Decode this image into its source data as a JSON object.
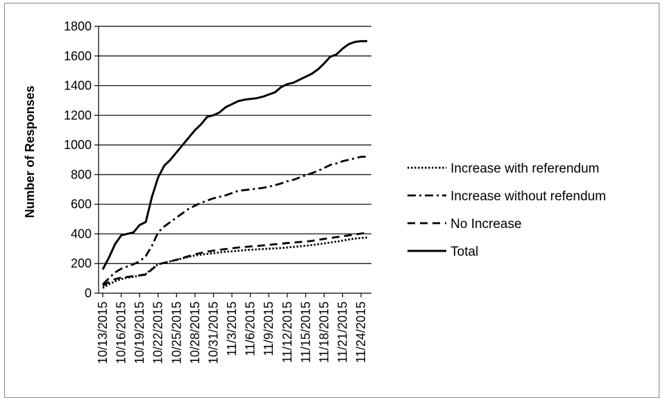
{
  "chart_data": {
    "type": "line",
    "title": "",
    "xlabel": "",
    "ylabel": "Number of Responses",
    "ylim": [
      0,
      1800
    ],
    "yticks": [
      0,
      200,
      400,
      600,
      800,
      1000,
      1200,
      1400,
      1600,
      1800
    ],
    "x_start": "10/13/2015",
    "x_end": "11/25/2015",
    "xtick_labels": [
      "10/13/2015",
      "10/16/2015",
      "10/19/2015",
      "10/22/2015",
      "10/25/2015",
      "10/28/2015",
      "10/31/2015",
      "11/3/2015",
      "11/6/2015",
      "11/9/2015",
      "11/12/2015",
      "11/15/2015",
      "11/18/2015",
      "11/21/2015",
      "11/24/2015"
    ],
    "grid": "horizontal",
    "legend_position": "right",
    "series": [
      {
        "name": "Increase with referendum",
        "style": "dotted",
        "color": "#000000",
        "x": [
          "10/13/2015",
          "10/14/2015",
          "10/15/2015",
          "10/16/2015",
          "10/17/2015",
          "10/18/2015",
          "10/19/2015",
          "10/20/2015",
          "10/21/2015",
          "10/22/2015",
          "10/23/2015",
          "10/24/2015",
          "10/25/2015",
          "10/26/2015",
          "10/27/2015",
          "10/28/2015",
          "10/29/2015",
          "10/30/2015",
          "10/31/2015",
          "11/1/2015",
          "11/2/2015",
          "11/3/2015",
          "11/4/2015",
          "11/5/2015",
          "11/6/2015",
          "11/7/2015",
          "11/8/2015",
          "11/9/2015",
          "11/10/2015",
          "11/11/2015",
          "11/12/2015",
          "11/13/2015",
          "11/14/2015",
          "11/15/2015",
          "11/16/2015",
          "11/17/2015",
          "11/18/2015",
          "11/19/2015",
          "11/20/2015",
          "11/21/2015",
          "11/22/2015",
          "11/23/2015",
          "11/24/2015",
          "11/25/2015"
        ],
        "values": [
          35,
          60,
          80,
          95,
          105,
          110,
          120,
          130,
          165,
          195,
          205,
          215,
          225,
          235,
          245,
          255,
          260,
          265,
          270,
          275,
          280,
          282,
          286,
          290,
          293,
          295,
          298,
          300,
          302,
          305,
          308,
          312,
          316,
          320,
          325,
          330,
          335,
          342,
          348,
          355,
          362,
          368,
          372,
          375
        ]
      },
      {
        "name": "Increase without refendum",
        "style": "dashdot",
        "color": "#000000",
        "x": [
          "10/13/2015",
          "10/14/2015",
          "10/15/2015",
          "10/16/2015",
          "10/17/2015",
          "10/18/2015",
          "10/19/2015",
          "10/20/2015",
          "10/21/2015",
          "10/22/2015",
          "10/23/2015",
          "10/24/2015",
          "10/25/2015",
          "10/26/2015",
          "10/27/2015",
          "10/28/2015",
          "10/29/2015",
          "10/30/2015",
          "10/31/2015",
          "11/1/2015",
          "11/2/2015",
          "11/3/2015",
          "11/4/2015",
          "11/5/2015",
          "11/6/2015",
          "11/7/2015",
          "11/8/2015",
          "11/9/2015",
          "11/10/2015",
          "11/11/2015",
          "11/12/2015",
          "11/13/2015",
          "11/14/2015",
          "11/15/2015",
          "11/16/2015",
          "11/17/2015",
          "11/18/2015",
          "11/19/2015",
          "11/20/2015",
          "11/21/2015",
          "11/22/2015",
          "11/23/2015",
          "11/24/2015",
          "11/25/2015"
        ],
        "values": [
          60,
          100,
          140,
          165,
          180,
          195,
          215,
          250,
          320,
          410,
          450,
          480,
          510,
          540,
          570,
          590,
          610,
          625,
          640,
          650,
          660,
          675,
          690,
          695,
          700,
          705,
          710,
          718,
          728,
          740,
          755,
          765,
          780,
          795,
          810,
          825,
          845,
          865,
          875,
          890,
          900,
          910,
          920,
          920
        ]
      },
      {
        "name": "No Increase",
        "style": "dashed",
        "color": "#000000",
        "x": [
          "10/13/2015",
          "10/14/2015",
          "10/15/2015",
          "10/16/2015",
          "10/17/2015",
          "10/18/2015",
          "10/19/2015",
          "10/20/2015",
          "10/21/2015",
          "10/22/2015",
          "10/23/2015",
          "10/24/2015",
          "10/25/2015",
          "10/26/2015",
          "10/27/2015",
          "10/28/2015",
          "10/29/2015",
          "10/30/2015",
          "10/31/2015",
          "11/1/2015",
          "11/2/2015",
          "11/3/2015",
          "11/4/2015",
          "11/5/2015",
          "11/6/2015",
          "11/7/2015",
          "11/8/2015",
          "11/9/2015",
          "11/10/2015",
          "11/11/2015",
          "11/12/2015",
          "11/13/2015",
          "11/14/2015",
          "11/15/2015",
          "11/16/2015",
          "11/17/2015",
          "11/18/2015",
          "11/19/2015",
          "11/20/2015",
          "11/21/2015",
          "11/22/2015",
          "11/23/2015",
          "11/24/2015",
          "11/25/2015"
        ],
        "values": [
          50,
          75,
          95,
          105,
          110,
          115,
          120,
          125,
          160,
          195,
          205,
          215,
          225,
          238,
          250,
          262,
          272,
          280,
          287,
          292,
          298,
          303,
          308,
          312,
          315,
          318,
          322,
          326,
          330,
          334,
          338,
          342,
          345,
          348,
          353,
          360,
          366,
          372,
          378,
          384,
          390,
          396,
          402,
          408
        ]
      },
      {
        "name": "Total",
        "style": "solid",
        "color": "#000000",
        "x": [
          "10/13/2015",
          "10/14/2015",
          "10/15/2015",
          "10/16/2015",
          "10/17/2015",
          "10/18/2015",
          "10/19/2015",
          "10/20/2015",
          "10/21/2015",
          "10/22/2015",
          "10/23/2015",
          "10/24/2015",
          "10/25/2015",
          "10/26/2015",
          "10/27/2015",
          "10/28/2015",
          "10/29/2015",
          "10/30/2015",
          "10/31/2015",
          "11/1/2015",
          "11/2/2015",
          "11/3/2015",
          "11/4/2015",
          "11/5/2015",
          "11/6/2015",
          "11/7/2015",
          "11/8/2015",
          "11/9/2015",
          "11/10/2015",
          "11/11/2015",
          "11/12/2015",
          "11/13/2015",
          "11/14/2015",
          "11/15/2015",
          "11/16/2015",
          "11/17/2015",
          "11/18/2015",
          "11/19/2015",
          "11/20/2015",
          "11/21/2015",
          "11/22/2015",
          "11/23/2015",
          "11/24/2015",
          "11/25/2015"
        ],
        "values": [
          160,
          240,
          330,
          390,
          400,
          410,
          460,
          480,
          650,
          780,
          860,
          900,
          950,
          1000,
          1050,
          1100,
          1140,
          1190,
          1200,
          1220,
          1255,
          1275,
          1295,
          1305,
          1310,
          1315,
          1325,
          1340,
          1355,
          1390,
          1410,
          1420,
          1440,
          1460,
          1480,
          1510,
          1550,
          1595,
          1610,
          1650,
          1680,
          1695,
          1700,
          1700
        ]
      }
    ]
  }
}
